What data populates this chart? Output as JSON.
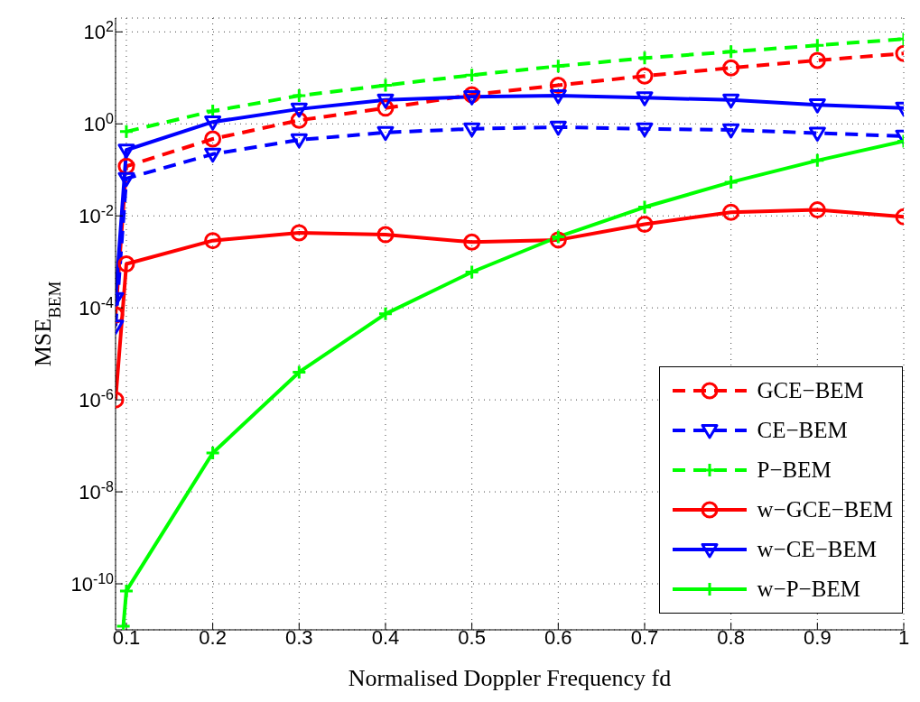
{
  "chart_data": {
    "type": "line",
    "xlabel": "Normalised Doppler Frequency fd",
    "ylabel": "MSE$_{BEM}$",
    "log": "y",
    "grid": true,
    "legend": "bottom right",
    "xlim": [
      0.0875,
      1
    ],
    "xticks": [
      0.1,
      0.2,
      0.3,
      0.4,
      0.5,
      0.6,
      0.7,
      0.8,
      0.9,
      1
    ],
    "ylim": [
      1e-11,
      200
    ],
    "yticks": [
      {
        "value": 1e-10,
        "label": "10$^{-10}$"
      },
      {
        "value": 1e-08,
        "label": "10$^{-8}$"
      },
      {
        "value": 1e-06,
        "label": "10$^{-6}$"
      },
      {
        "value": 0.0001,
        "label": "10$^{-4}$"
      },
      {
        "value": 0.01,
        "label": "10$^{-2}$"
      },
      {
        "value": 1,
        "label": "10$^{0}$"
      },
      {
        "value": 100,
        "label": "10$^{2}$"
      }
    ],
    "series": [
      {
        "name": "GCE−BEM",
        "color": "#ff0000",
        "marker": "circle",
        "line_style": "dashed",
        "x": [
          0.0875,
          0.1,
          0.2,
          0.3,
          0.4,
          0.5,
          0.6,
          0.7,
          0.8,
          0.9,
          1
        ],
        "values": [
          7e-05,
          0.12,
          0.47,
          1.2,
          2.2,
          4.3,
          6.9,
          11,
          16.5,
          24,
          34
        ]
      },
      {
        "name": "CE−BEM",
        "color": "#0000ff",
        "marker": "triangle",
        "line_style": "dashed",
        "x": [
          0.0875,
          0.1,
          0.2,
          0.3,
          0.4,
          0.5,
          0.6,
          0.7,
          0.8,
          0.9,
          1
        ],
        "values": [
          4e-05,
          0.065,
          0.22,
          0.45,
          0.65,
          0.78,
          0.85,
          0.78,
          0.74,
          0.63,
          0.54
        ]
      },
      {
        "name": "P−BEM",
        "color": "#00ff00",
        "marker": "cross",
        "line_style": "dashed",
        "x": [
          0.1,
          0.2,
          0.3,
          0.4,
          0.5,
          0.6,
          0.7,
          0.8,
          0.9,
          1
        ],
        "values": [
          0.68,
          1.9,
          4.1,
          6.9,
          11.5,
          18,
          27,
          37,
          51,
          70
        ]
      },
      {
        "name": "w−GCE−BEM",
        "color": "#ff0000",
        "marker": "circle",
        "line_style": "solid",
        "x": [
          0.0875,
          0.1,
          0.2,
          0.3,
          0.4,
          0.5,
          0.6,
          0.7,
          0.8,
          0.9,
          1
        ],
        "values": [
          1e-06,
          0.0009,
          0.0029,
          0.0043,
          0.0039,
          0.0027,
          0.003,
          0.0066,
          0.012,
          0.0135,
          0.0095
        ]
      },
      {
        "name": "w−CE−BEM",
        "color": "#0000ff",
        "marker": "triangle",
        "line_style": "solid",
        "x": [
          0.0875,
          0.1,
          0.2,
          0.3,
          0.4,
          0.5,
          0.6,
          0.7,
          0.8,
          0.9,
          1
        ],
        "values": [
          0.00016,
          0.27,
          1.1,
          2.1,
          3.3,
          3.9,
          4.1,
          3.7,
          3.3,
          2.6,
          2.2
        ]
      },
      {
        "name": "w−P−BEM",
        "color": "#00ff00",
        "marker": "cross",
        "line_style": "solid",
        "x": [
          0.0965,
          0.1,
          0.2,
          0.3,
          0.4,
          0.5,
          0.6,
          0.7,
          0.8,
          0.9,
          1
        ],
        "values": [
          1.2e-11,
          7e-11,
          7e-08,
          4e-06,
          7.4e-05,
          0.0006,
          0.0035,
          0.0155,
          0.054,
          0.16,
          0.42
        ]
      }
    ]
  }
}
